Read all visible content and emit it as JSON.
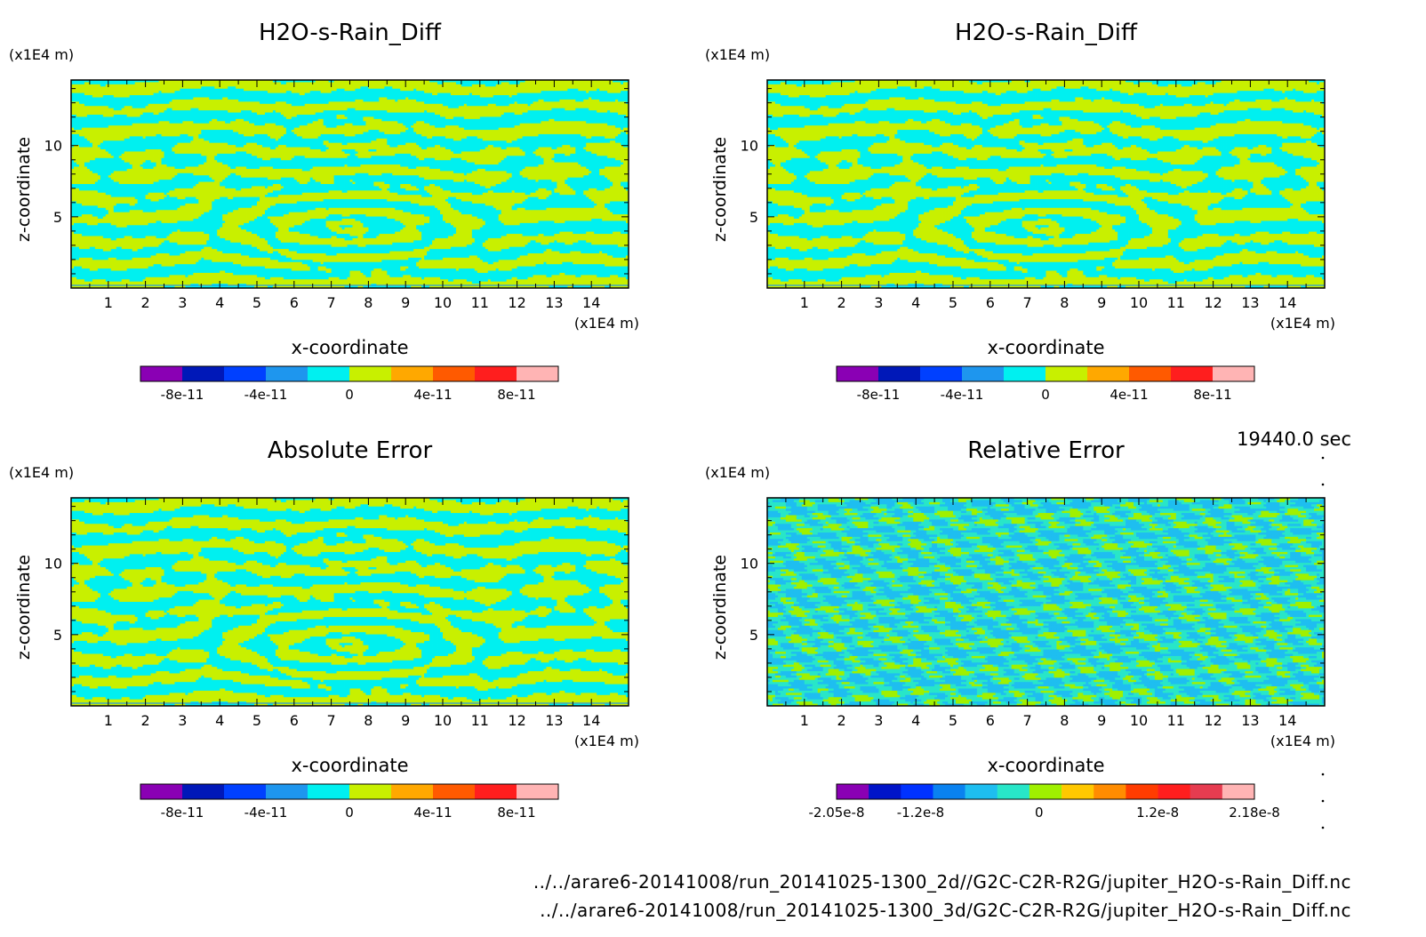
{
  "time_label": "19440.0 sec",
  "footer": {
    "line1": "../../arare6-20141008/run_20141025-1300_2d//G2C-C2R-R2G/jupiter_H2O-s-Rain_Diff.nc",
    "line2": "../../arare6-20141008/run_20141025-1300_3d/G2C-C2R-R2G/jupiter_H2O-s-Rain_Diff.nc"
  },
  "chart_data": [
    {
      "type": "heatmap",
      "title": "H2O-s-Rain_Diff",
      "xlabel": "x-coordinate",
      "ylabel": "z-coordinate",
      "x_unit": "(x1E4 m)",
      "y_unit": "(x1E4 m)",
      "xlim": [
        0,
        15
      ],
      "ylim": [
        0,
        14.6
      ],
      "x_ticks": [
        "1",
        "2",
        "3",
        "4",
        "5",
        "6",
        "7",
        "8",
        "9",
        "10",
        "11",
        "12",
        "13",
        "14"
      ],
      "y_ticks": [
        "5",
        "10"
      ],
      "field_pattern": "banded",
      "colorbar": {
        "colors": [
          "#8a00b4",
          "#0018b8",
          "#0040ff",
          "#1e96ee",
          "#00f0f0",
          "#c8f000",
          "#ffa800",
          "#ff5a00",
          "#ff1e1e",
          "#ffb4b4"
        ],
        "tick_labels": [
          "-8e-11",
          "-4e-11",
          "0",
          "4e-11",
          "8e-11"
        ],
        "tick_values": [
          -8e-11,
          -4e-11,
          0,
          4e-11,
          8e-11
        ],
        "vmin": -1e-10,
        "vmax": 1e-10
      }
    },
    {
      "type": "heatmap",
      "title": "H2O-s-Rain_Diff",
      "xlabel": "x-coordinate",
      "ylabel": "z-coordinate",
      "x_unit": "(x1E4 m)",
      "y_unit": "(x1E4 m)",
      "xlim": [
        0,
        15
      ],
      "ylim": [
        0,
        14.6
      ],
      "x_ticks": [
        "1",
        "2",
        "3",
        "4",
        "5",
        "6",
        "7",
        "8",
        "9",
        "10",
        "11",
        "12",
        "13",
        "14"
      ],
      "y_ticks": [
        "5",
        "10"
      ],
      "field_pattern": "banded",
      "colorbar": {
        "colors": [
          "#8a00b4",
          "#0018b8",
          "#0040ff",
          "#1e96ee",
          "#00f0f0",
          "#c8f000",
          "#ffa800",
          "#ff5a00",
          "#ff1e1e",
          "#ffb4b4"
        ],
        "tick_labels": [
          "-8e-11",
          "-4e-11",
          "0",
          "4e-11",
          "8e-11"
        ],
        "tick_values": [
          -8e-11,
          -4e-11,
          0,
          4e-11,
          8e-11
        ],
        "vmin": -1e-10,
        "vmax": 1e-10
      }
    },
    {
      "type": "heatmap",
      "title": "Absolute Error",
      "xlabel": "x-coordinate",
      "ylabel": "z-coordinate",
      "x_unit": "(x1E4 m)",
      "y_unit": "(x1E4 m)",
      "xlim": [
        0,
        15
      ],
      "ylim": [
        0,
        14.6
      ],
      "x_ticks": [
        "1",
        "2",
        "3",
        "4",
        "5",
        "6",
        "7",
        "8",
        "9",
        "10",
        "11",
        "12",
        "13",
        "14"
      ],
      "y_ticks": [
        "5",
        "10"
      ],
      "field_pattern": "banded",
      "colorbar": {
        "colors": [
          "#8a00b4",
          "#0018b8",
          "#0040ff",
          "#1e96ee",
          "#00f0f0",
          "#c8f000",
          "#ffa800",
          "#ff5a00",
          "#ff1e1e",
          "#ffb4b4"
        ],
        "tick_labels": [
          "-8e-11",
          "-4e-11",
          "0",
          "4e-11",
          "8e-11"
        ],
        "tick_values": [
          -8e-11,
          -4e-11,
          0,
          4e-11,
          8e-11
        ],
        "vmin": -1e-10,
        "vmax": 1e-10
      }
    },
    {
      "type": "heatmap",
      "title": "Relative Error",
      "xlabel": "x-coordinate",
      "ylabel": "z-coordinate",
      "x_unit": "(x1E4 m)",
      "y_unit": "(x1E4 m)",
      "xlim": [
        0,
        15
      ],
      "ylim": [
        0,
        14.6
      ],
      "x_ticks": [
        "1",
        "2",
        "3",
        "4",
        "5",
        "6",
        "7",
        "8",
        "9",
        "10",
        "11",
        "12",
        "13",
        "14"
      ],
      "y_ticks": [
        "5",
        "10"
      ],
      "field_pattern": "noisy",
      "colorbar": {
        "colors": [
          "#8a00b4",
          "#0014c8",
          "#0032ff",
          "#0a82f0",
          "#1ebef0",
          "#28e6c8",
          "#a0f000",
          "#ffc800",
          "#ff8c00",
          "#ff3c00",
          "#ff1e1e",
          "#e63c50",
          "#ffb4b4"
        ],
        "tick_labels": [
          "-2.05e-8",
          "-1.2e-8",
          "0",
          "1.2e-8",
          "2.18e-8"
        ],
        "tick_values": [
          -2.05e-08,
          -1.2e-08,
          0,
          1.2e-08,
          2.18e-08
        ],
        "vmin": -2.05e-08,
        "vmax": 2.18e-08
      }
    }
  ]
}
